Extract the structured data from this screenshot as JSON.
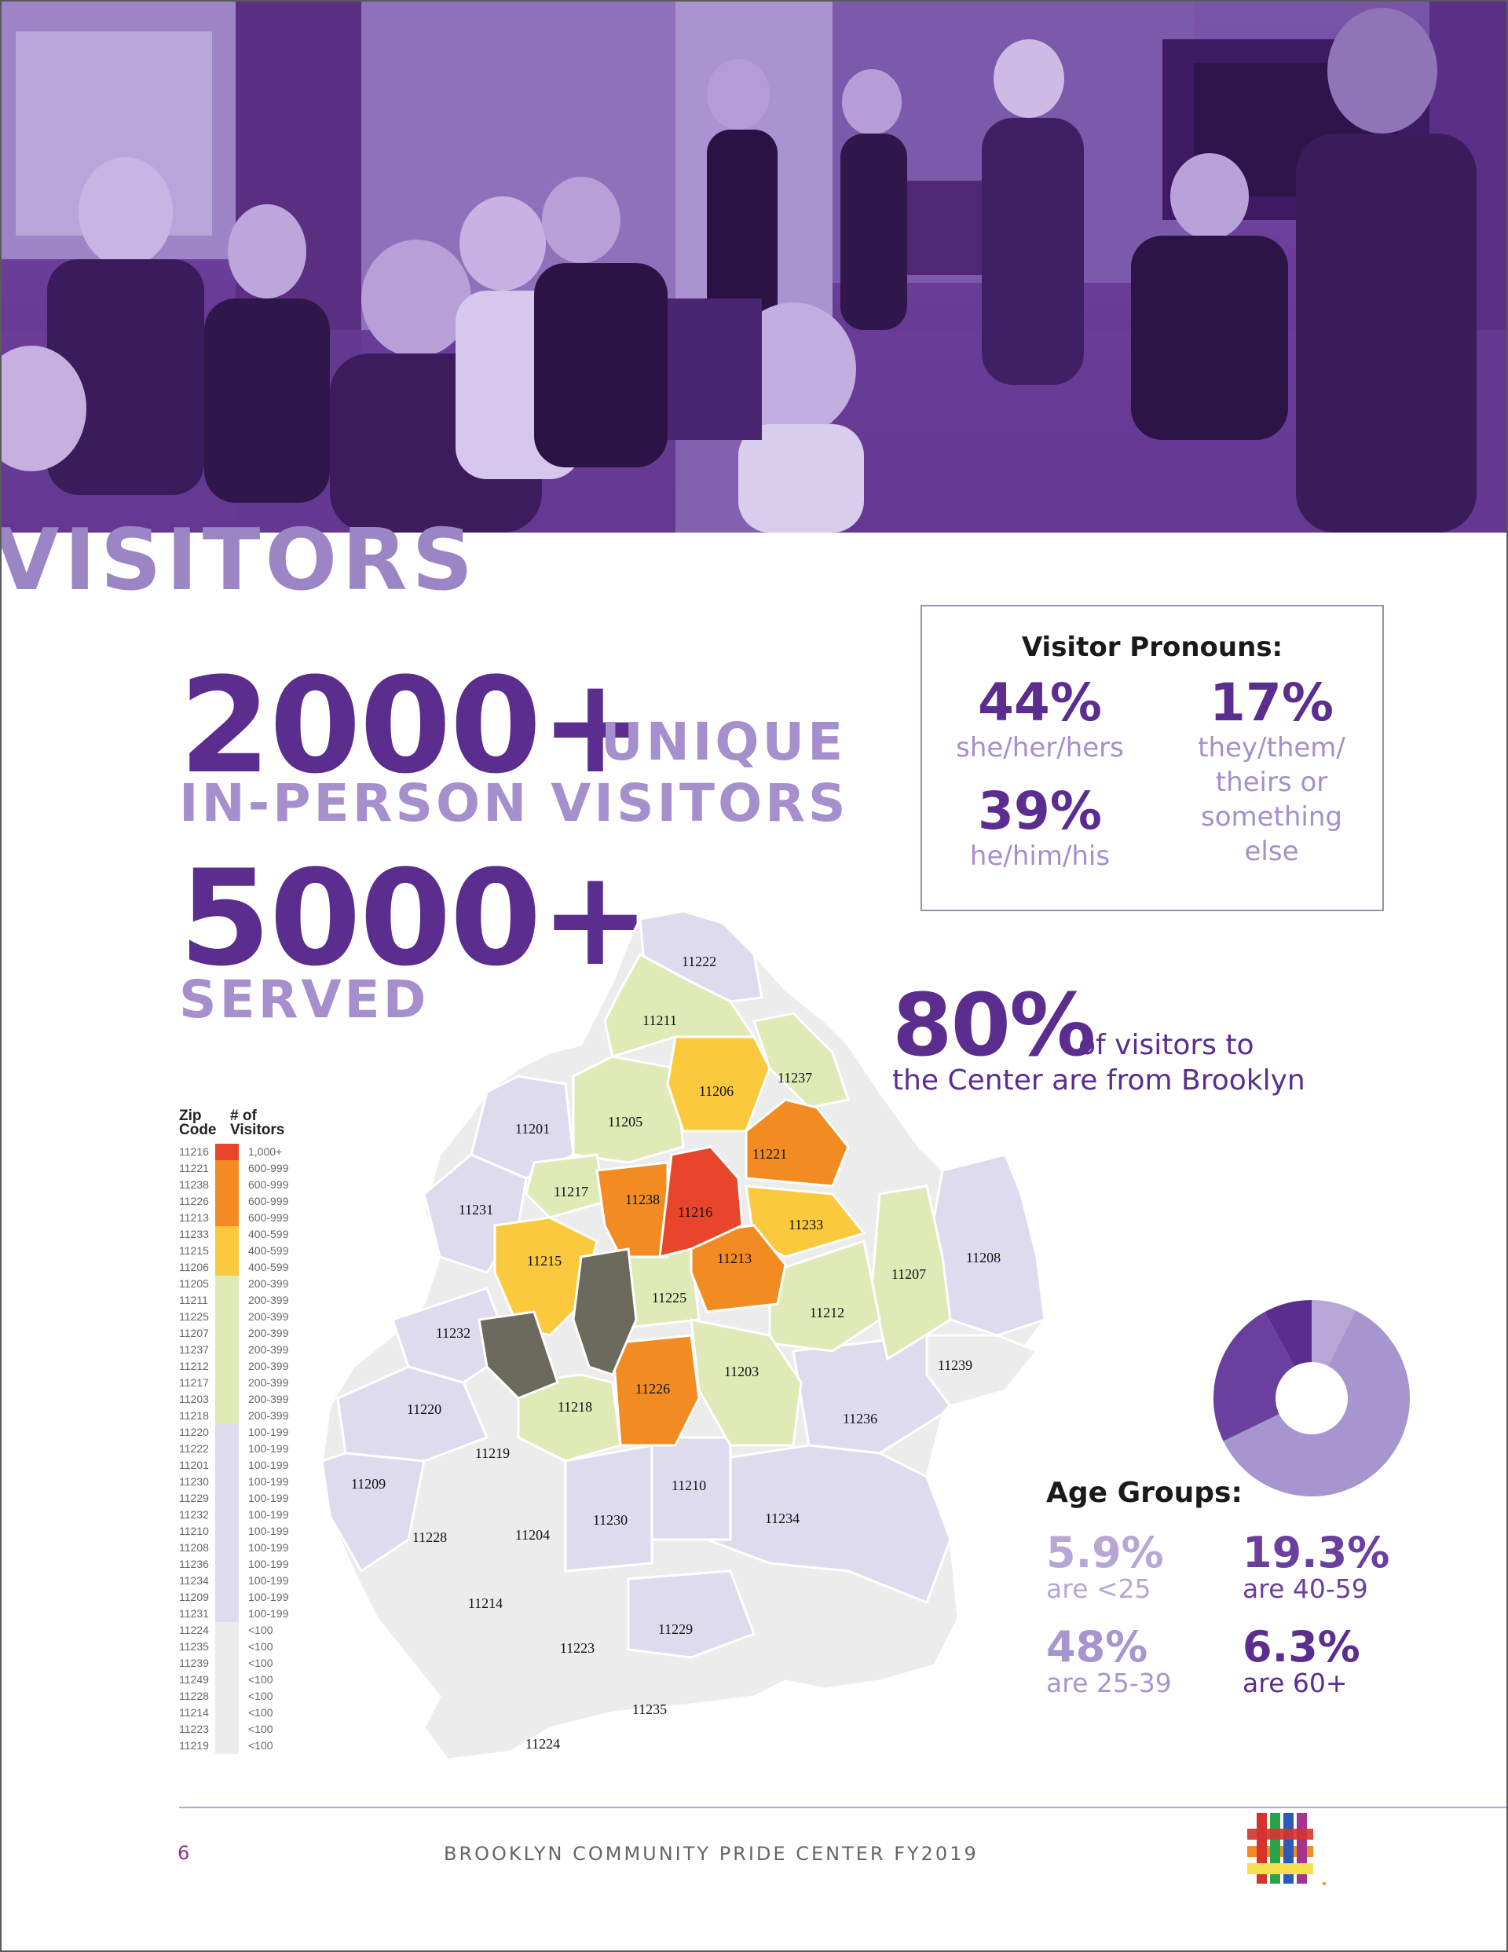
{
  "page": {
    "section_title": "VISITORS",
    "page_number": "6",
    "footer": "BROOKLYN COMMUNITY PRIDE CENTER FY2019"
  },
  "headline": {
    "visitors_number": "2000+",
    "visitors_unit_line1": "UNIQUE",
    "visitors_unit_line2": "IN-PERSON VISITORS",
    "served_number": "5000+",
    "served_label": "SERVED"
  },
  "pronouns": {
    "title": "Visitor Pronouns:",
    "items": [
      {
        "pct": "44%",
        "label": "she/her/hers"
      },
      {
        "pct": "17%",
        "label_lines": [
          "they/them/",
          "theirs or",
          "something",
          "else"
        ]
      },
      {
        "pct": "39%",
        "label": "he/him/his"
      }
    ]
  },
  "brooklyn_stat": {
    "pct": "80%",
    "text_line1": "of visitors to",
    "text_line2": "the Center are from Brooklyn"
  },
  "legend": {
    "col1_header": [
      "Zip",
      "Code"
    ],
    "col2_header": [
      "# of",
      "Visitors"
    ],
    "rows": [
      {
        "zip": "11216",
        "range": "1,000+",
        "tier": "red"
      },
      {
        "zip": "11221",
        "range": "600-999",
        "tier": "orange"
      },
      {
        "zip": "11238",
        "range": "600-999",
        "tier": "orange"
      },
      {
        "zip": "11226",
        "range": "600-999",
        "tier": "orange"
      },
      {
        "zip": "11213",
        "range": "600-999",
        "tier": "orange"
      },
      {
        "zip": "11233",
        "range": "400-599",
        "tier": "yellow"
      },
      {
        "zip": "11215",
        "range": "400-599",
        "tier": "yellow"
      },
      {
        "zip": "11206",
        "range": "400-599",
        "tier": "yellow"
      },
      {
        "zip": "11205",
        "range": "200-399",
        "tier": "green"
      },
      {
        "zip": "11211",
        "range": "200-399",
        "tier": "green"
      },
      {
        "zip": "11225",
        "range": "200-399",
        "tier": "green"
      },
      {
        "zip": "11207",
        "range": "200-399",
        "tier": "green"
      },
      {
        "zip": "11237",
        "range": "200-399",
        "tier": "green"
      },
      {
        "zip": "11212",
        "range": "200-399",
        "tier": "green"
      },
      {
        "zip": "11217",
        "range": "200-399",
        "tier": "green"
      },
      {
        "zip": "11203",
        "range": "200-399",
        "tier": "green"
      },
      {
        "zip": "11218",
        "range": "200-399",
        "tier": "green"
      },
      {
        "zip": "11220",
        "range": "100-199",
        "tier": "lavender"
      },
      {
        "zip": "11222",
        "range": "100-199",
        "tier": "lavender"
      },
      {
        "zip": "11201",
        "range": "100-199",
        "tier": "lavender"
      },
      {
        "zip": "11230",
        "range": "100-199",
        "tier": "lavender"
      },
      {
        "zip": "11229",
        "range": "100-199",
        "tier": "lavender"
      },
      {
        "zip": "11232",
        "range": "100-199",
        "tier": "lavender"
      },
      {
        "zip": "11210",
        "range": "100-199",
        "tier": "lavender"
      },
      {
        "zip": "11208",
        "range": "100-199",
        "tier": "lavender"
      },
      {
        "zip": "11236",
        "range": "100-199",
        "tier": "lavender"
      },
      {
        "zip": "11234",
        "range": "100-199",
        "tier": "lavender"
      },
      {
        "zip": "11209",
        "range": "100-199",
        "tier": "lavender"
      },
      {
        "zip": "11231",
        "range": "100-199",
        "tier": "lavender"
      },
      {
        "zip": "11224",
        "range": "<100",
        "tier": "gray"
      },
      {
        "zip": "11235",
        "range": "<100",
        "tier": "gray"
      },
      {
        "zip": "11239",
        "range": "<100",
        "tier": "gray"
      },
      {
        "zip": "11249",
        "range": "<100",
        "tier": "gray"
      },
      {
        "zip": "11228",
        "range": "<100",
        "tier": "gray"
      },
      {
        "zip": "11214",
        "range": "<100",
        "tier": "gray"
      },
      {
        "zip": "11223",
        "range": "<100",
        "tier": "gray"
      },
      {
        "zip": "11219",
        "range": "<100",
        "tier": "gray"
      }
    ],
    "tier_colors": {
      "red": "#e8452b",
      "orange": "#f28c22",
      "yellow": "#fbc93d",
      "green": "#dfeab7",
      "lavender": "#dedbee",
      "gray": "#ececec",
      "park": "#6b6a5c"
    }
  },
  "map_labels": [
    "11222",
    "11211",
    "11237",
    "11206",
    "11201",
    "11205",
    "11221",
    "11217",
    "11238",
    "11216",
    "11233",
    "11231",
    "11215",
    "11213",
    "11207",
    "11208",
    "11225",
    "11212",
    "11232",
    "11226",
    "11203",
    "11239",
    "11220",
    "11218",
    "11236",
    "11219",
    "11209",
    "11210",
    "11230",
    "11234",
    "11228",
    "11204",
    "11214",
    "11229",
    "11223",
    "11235",
    "11224"
  ],
  "age_groups": {
    "title": "Age Groups:",
    "items": [
      {
        "pct": "5.9%",
        "label": "are <25",
        "color": "#b7a7d6"
      },
      {
        "pct": "19.3%",
        "label": "are 40-59",
        "color": "#6a3f9e"
      },
      {
        "pct": "48%",
        "label": "are 25-39",
        "color": "#a795cf"
      },
      {
        "pct": "6.3%",
        "label": "are 60+",
        "color": "#5b2d8e"
      }
    ]
  },
  "chart_data": {
    "type": "pie",
    "title": "",
    "categories": [
      "<25",
      "25-39",
      "40-59",
      "60+"
    ],
    "values": [
      5.9,
      48,
      19.3,
      6.3
    ]
  }
}
